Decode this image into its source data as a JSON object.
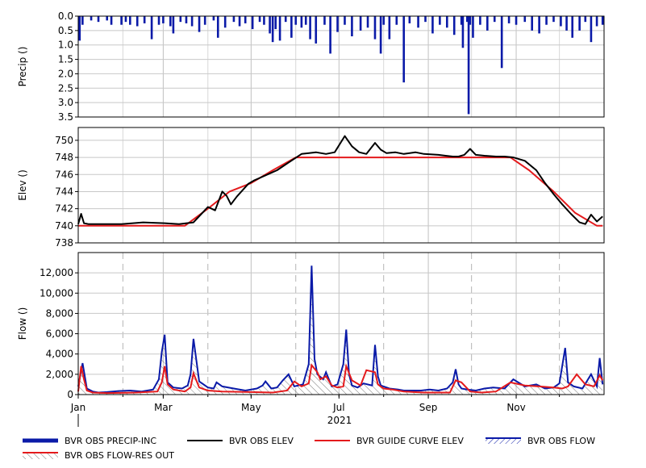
{
  "chart_data": [
    {
      "type": "bar",
      "ylabel": "Precip ()",
      "ylim": [
        0,
        3.5
      ],
      "y_inverted": true,
      "yticks": [
        "0.0",
        "0.5",
        "1.0",
        "1.5",
        "2.0",
        "2.5",
        "3.0",
        "3.5"
      ],
      "ytick_values": [
        0,
        0.5,
        1,
        1.5,
        2,
        2.5,
        3,
        3.5
      ],
      "series": [
        {
          "label": "BVR OBS PRECIP-INC",
          "color": "#0a1aa8",
          "x_days": [
            1,
            3,
            9,
            14,
            20,
            23,
            30,
            33,
            36,
            41,
            46,
            51,
            56,
            59,
            64,
            66,
            71,
            75,
            79,
            84,
            88,
            94,
            97,
            102,
            108,
            112,
            116,
            121,
            126,
            129,
            133,
            135,
            137,
            140,
            144,
            148,
            151,
            155,
            158,
            161,
            165,
            171,
            175,
            180,
            185,
            190,
            196,
            201,
            206,
            210,
            212,
            216,
            221,
            226,
            230,
            236,
            241,
            246,
            251,
            256,
            261,
            266,
            270,
            272,
            274,
            279,
            284,
            289,
            294,
            299,
            304,
            310,
            315,
            320,
            325,
            330,
            335,
            339,
            343,
            348,
            352,
            356,
            360,
            364
          ],
          "values": [
            0.85,
            0.3,
            0.15,
            0.2,
            0.15,
            0.3,
            0.3,
            0.2,
            0.3,
            0.35,
            0.25,
            0.8,
            0.3,
            0.25,
            0.35,
            0.6,
            0.2,
            0.25,
            0.35,
            0.55,
            0.3,
            0.15,
            0.75,
            0.4,
            0.2,
            0.35,
            0.25,
            0.45,
            0.2,
            0.3,
            0.6,
            0.9,
            0.45,
            0.85,
            0.2,
            0.75,
            0.3,
            0.4,
            0.3,
            0.8,
            0.95,
            0.3,
            1.3,
            0.55,
            0.3,
            0.7,
            0.5,
            0.4,
            0.8,
            1.3,
            0.3,
            0.8,
            0.3,
            2.3,
            0.25,
            0.4,
            0.2,
            0.6,
            0.3,
            0.4,
            0.65,
            0.3,
            0.2,
            0.3,
            0.75,
            0.3,
            0.5,
            0.2,
            1.8,
            0.25,
            0.3,
            0.2,
            0.5,
            0.6,
            0.3,
            0.2,
            0.35,
            0.5,
            0.75,
            0.5,
            0.2,
            0.9,
            0.35,
            0.3
          ],
          "extra_x_days": [
            270
          ],
          "extra_values": [
            1.35
          ]
        }
      ],
      "spikes": [
        {
          "x_day": 271,
          "value": 3.4
        },
        {
          "x_day": 267,
          "value": 1.1
        }
      ]
    },
    {
      "type": "line",
      "ylabel": "Elev ()",
      "ylim": [
        738,
        751.5
      ],
      "yticks": [
        "738",
        "740",
        "742",
        "744",
        "746",
        "748",
        "750"
      ],
      "ytick_values": [
        738,
        740,
        742,
        744,
        746,
        748,
        750
      ],
      "series": [
        {
          "label": "BVR OBS ELEV",
          "color": "#000000",
          "x_days": [
            0,
            2,
            4,
            7,
            12,
            20,
            30,
            45,
            60,
            70,
            80,
            90,
            95,
            100,
            103,
            106,
            110,
            118,
            122,
            126,
            130,
            138,
            146,
            155,
            165,
            172,
            178,
            185,
            190,
            195,
            200,
            206,
            210,
            214,
            220,
            226,
            234,
            240,
            250,
            255,
            260,
            264,
            268,
            272,
            276,
            282,
            290,
            296,
            302,
            310,
            318,
            324,
            330,
            336,
            342,
            348,
            352,
            356,
            360,
            364
          ],
          "values": [
            740.2,
            741.4,
            740.3,
            740.2,
            740.2,
            740.2,
            740.2,
            740.4,
            740.3,
            740.2,
            740.4,
            742.2,
            741.8,
            744.0,
            743.5,
            742.5,
            743.4,
            744.9,
            745.3,
            745.6,
            745.9,
            746.5,
            747.4,
            748.4,
            748.6,
            748.4,
            748.6,
            750.5,
            749.3,
            748.6,
            748.4,
            749.7,
            748.9,
            748.5,
            748.6,
            748.4,
            748.6,
            748.4,
            748.3,
            748.2,
            748.1,
            748.1,
            748.3,
            749.0,
            748.3,
            748.2,
            748.1,
            748.1,
            748.0,
            747.6,
            746.5,
            745.0,
            743.7,
            742.5,
            741.4,
            740.4,
            740.2,
            741.3,
            740.5,
            741.1
          ]
        },
        {
          "label": "BVR GUIDE CURVE ELEV",
          "color": "#e41a1c",
          "x_days": [
            0,
            74,
            90,
            105,
            120,
            135,
            151,
            170,
            200,
            250,
            300,
            313,
            330,
            345,
            360,
            364
          ],
          "values": [
            740,
            740,
            742,
            744,
            745,
            746.5,
            748,
            748,
            748,
            748,
            748,
            746.5,
            744,
            741.5,
            740,
            740
          ]
        }
      ]
    },
    {
      "type": "line",
      "ylabel": "Flow ()",
      "ylim": [
        0,
        14000
      ],
      "yticks": [
        "0",
        "2,000",
        "4,000",
        "6,000",
        "8,000",
        "10,000",
        "12,000"
      ],
      "ytick_values": [
        0,
        2000,
        4000,
        6000,
        8000,
        10000,
        12000
      ],
      "xticks": [
        "Jan",
        "Mar",
        "May",
        "Jul",
        "Sep",
        "Nov"
      ],
      "xtick_days": [
        0,
        59,
        120,
        181,
        243,
        304
      ],
      "year_label": "2021",
      "series": [
        {
          "label": "BVR OBS FLOW",
          "color": "#0a1aa8",
          "x_days": [
            0,
            3,
            6,
            10,
            14,
            20,
            28,
            36,
            44,
            52,
            56,
            58,
            60,
            62,
            66,
            72,
            76,
            78,
            80,
            84,
            90,
            94,
            96,
            100,
            108,
            116,
            124,
            128,
            130,
            134,
            138,
            142,
            146,
            150,
            156,
            160,
            162,
            164,
            166,
            170,
            172,
            176,
            180,
            184,
            186,
            188,
            190,
            194,
            198,
            204,
            206,
            208,
            210,
            216,
            222,
            226,
            232,
            238,
            244,
            250,
            256,
            260,
            262,
            264,
            266,
            270,
            276,
            282,
            288,
            296,
            302,
            310,
            318,
            324,
            330,
            334,
            338,
            340,
            344,
            350,
            356,
            360,
            362,
            364
          ],
          "values": [
            800,
            3100,
            600,
            300,
            200,
            250,
            350,
            400,
            300,
            500,
            1500,
            4200,
            5900,
            1200,
            700,
            600,
            900,
            2000,
            5500,
            1300,
            700,
            600,
            1200,
            800,
            600,
            400,
            600,
            900,
            1300,
            600,
            700,
            1400,
            2000,
            800,
            1000,
            3000,
            12700,
            3500,
            2000,
            1500,
            2200,
            800,
            1000,
            3000,
            6400,
            2000,
            900,
            700,
            1100,
            900,
            4900,
            1800,
            900,
            600,
            500,
            400,
            400,
            400,
            500,
            400,
            600,
            1200,
            2500,
            1000,
            600,
            500,
            400,
            600,
            700,
            600,
            1500,
            800,
            1000,
            600,
            700,
            1100,
            4600,
            1200,
            800,
            600,
            2000,
            800,
            3600,
            1000
          ]
        },
        {
          "label": "BVR OBS FLOW-RES OUT",
          "color": "#e41a1c",
          "x_days": [
            0,
            2,
            4,
            6,
            10,
            20,
            40,
            55,
            58,
            60,
            62,
            66,
            74,
            78,
            80,
            84,
            90,
            100,
            120,
            135,
            145,
            150,
            155,
            160,
            162,
            166,
            168,
            172,
            176,
            180,
            184,
            186,
            190,
            196,
            200,
            206,
            208,
            212,
            218,
            226,
            240,
            258,
            262,
            266,
            272,
            280,
            290,
            300,
            310,
            320,
            330,
            336,
            340,
            346,
            352,
            358,
            362,
            364
          ],
          "values": [
            300,
            2800,
            1500,
            400,
            200,
            150,
            200,
            300,
            1200,
            2800,
            1000,
            500,
            300,
            700,
            2100,
            700,
            400,
            300,
            250,
            200,
            400,
            1300,
            800,
            1100,
            2900,
            2200,
            1500,
            1800,
            900,
            700,
            800,
            2800,
            1400,
            900,
            2400,
            2200,
            1000,
            600,
            500,
            300,
            200,
            200,
            1400,
            1200,
            300,
            200,
            300,
            1200,
            900,
            800,
            700,
            600,
            800,
            2000,
            1000,
            800,
            1900,
            1400
          ]
        }
      ]
    }
  ],
  "legend": [
    {
      "label": "BVR OBS PRECIP-INC"
    },
    {
      "label": "BVR OBS ELEV"
    },
    {
      "label": "BVR GUIDE CURVE ELEV"
    },
    {
      "label": "BVR OBS FLOW"
    },
    {
      "label": "BVR OBS FLOW-RES OUT"
    }
  ]
}
